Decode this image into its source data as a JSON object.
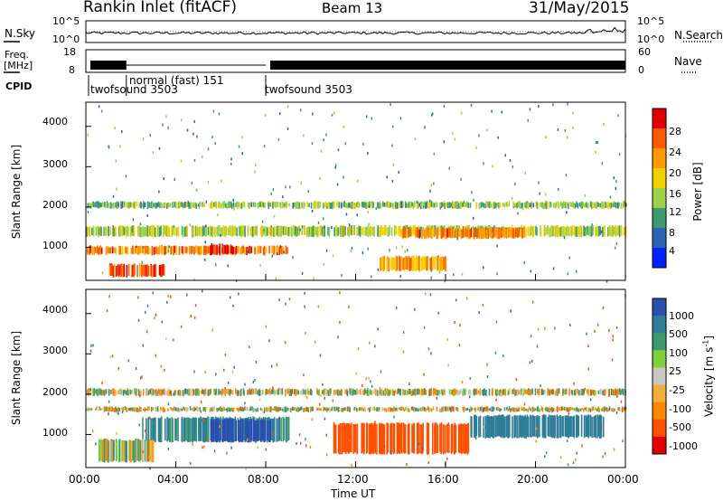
{
  "header": {
    "station": "Rankin Inlet (fitACF)",
    "beam": "Beam 13",
    "date": "31/May/2015"
  },
  "top_panel": {
    "left_label": "N.Sky",
    "right_label": "N.Search",
    "y_left_ticks": [
      "10^5",
      "10^0"
    ],
    "y_right_ticks": [
      "10^5",
      "10^0"
    ]
  },
  "freq_panel": {
    "left_label_1": "Freq.",
    "left_label_2": "[MHz]",
    "right_label": "Nave",
    "y_left_ticks": [
      "18",
      "8"
    ],
    "y_right_ticks": [
      "60",
      "0"
    ]
  },
  "cpid": {
    "label": "CPID",
    "segments": [
      {
        "name": "twofsound 3503",
        "start_hour": 0.0,
        "end_hour": 1.8
      },
      {
        "name": "normal (fast) 151",
        "start_hour": 1.8,
        "end_hour": 8.0
      },
      {
        "name": "twofsound 3503",
        "start_hour": 8.0,
        "end_hour": 24.0
      }
    ]
  },
  "power_panel": {
    "ylabel": "Slant Range [km]",
    "yticks": [
      "4000",
      "3000",
      "2000",
      "1000"
    ],
    "colorbar_label": "Power [dB]",
    "colorbar_ticks": [
      "28",
      "24",
      "20",
      "16",
      "12",
      "8",
      "4"
    ]
  },
  "velocity_panel": {
    "ylabel": "Slant Range [km]",
    "yticks": [
      "4000",
      "3000",
      "2000",
      "1000"
    ],
    "colorbar_label": "Velocity [m s",
    "colorbar_label_sup": "-1",
    "colorbar_label_end": "]",
    "colorbar_ticks": [
      "1000",
      "500",
      "100",
      "25",
      "-25",
      "-100",
      "-500",
      "-1000"
    ]
  },
  "xaxis": {
    "label": "Time UT",
    "ticks": [
      "00:00",
      "04:00",
      "08:00",
      "12:00",
      "16:00",
      "20:00",
      "00:00"
    ]
  },
  "colors": {
    "power_scale": [
      "#e00000",
      "#ff5a00",
      "#ff9a00",
      "#f0d000",
      "#9ad04a",
      "#3f9a70",
      "#2a66b0",
      "#0020ff"
    ],
    "velocity_scale": [
      "#2a4fb0",
      "#2f7e98",
      "#3f9a70",
      "#7fd03a",
      "#c8c8c0",
      "#f3ad3c",
      "#ff8800",
      "#ff5000",
      "#e00000"
    ]
  },
  "chart_data": [
    {
      "type": "heatmap",
      "title": "Power",
      "xlabel": "Time UT",
      "ylabel": "Slant Range [km]",
      "x_range_hours": [
        0,
        24
      ],
      "y_range_km": [
        180,
        4600
      ],
      "colorbar": {
        "label": "Power [dB]",
        "range": [
          0,
          30
        ],
        "ticks": [
          4,
          8,
          12,
          16,
          20,
          24,
          28
        ]
      },
      "scatter_bands": [
        {
          "hour_start": 0.0,
          "hour_end": 24.0,
          "range_km": [
            1950,
            2150
          ],
          "power_db": 12
        },
        {
          "hour_start": 0.0,
          "hour_end": 24.0,
          "range_km": [
            1250,
            1550
          ],
          "power_db": 14
        },
        {
          "hour_start": 0.0,
          "hour_end": 9.0,
          "range_km": [
            800,
            1050
          ],
          "power_db": 22
        },
        {
          "hour_start": 5.5,
          "hour_end": 6.5,
          "range_km": [
            800,
            1100
          ],
          "power_db": 28
        },
        {
          "hour_start": 1.0,
          "hour_end": 3.5,
          "range_km": [
            250,
            600
          ],
          "power_db": 26
        },
        {
          "hour_start": 14.0,
          "hour_end": 19.5,
          "range_km": [
            1200,
            1500
          ],
          "power_db": 22
        },
        {
          "hour_start": 13.0,
          "hour_end": 16.0,
          "range_km": [
            400,
            800
          ],
          "power_db": 20
        }
      ]
    },
    {
      "type": "heatmap",
      "title": "Velocity",
      "xlabel": "Time UT",
      "ylabel": "Slant Range [km]",
      "x_range_hours": [
        0,
        24
      ],
      "y_range_km": [
        180,
        4600
      ],
      "colorbar": {
        "label": "Velocity [m s^-1]",
        "range": [
          -1000,
          1000
        ],
        "ticks": [
          1000,
          500,
          100,
          25,
          -25,
          -100,
          -500,
          -1000
        ]
      },
      "scatter_bands": [
        {
          "hour_start": 0.0,
          "hour_end": 24.0,
          "range_km": [
            1950,
            2150
          ],
          "velocity": 0
        },
        {
          "hour_start": 0.0,
          "hour_end": 24.0,
          "range_km": [
            1550,
            1700
          ],
          "velocity": 0
        },
        {
          "hour_start": 2.5,
          "hour_end": 9.0,
          "range_km": [
            800,
            1450
          ],
          "velocity": 150
        },
        {
          "hour_start": 5.5,
          "hour_end": 8.2,
          "range_km": [
            800,
            1400
          ],
          "velocity": 1000
        },
        {
          "hour_start": 11.0,
          "hour_end": 17.0,
          "range_km": [
            500,
            1300
          ],
          "velocity": -300
        },
        {
          "hour_start": 17.0,
          "hour_end": 23.0,
          "range_km": [
            900,
            1500
          ],
          "velocity": 300
        },
        {
          "hour_start": 0.5,
          "hour_end": 3.0,
          "range_km": [
            300,
            900
          ],
          "velocity": 10
        }
      ]
    }
  ]
}
